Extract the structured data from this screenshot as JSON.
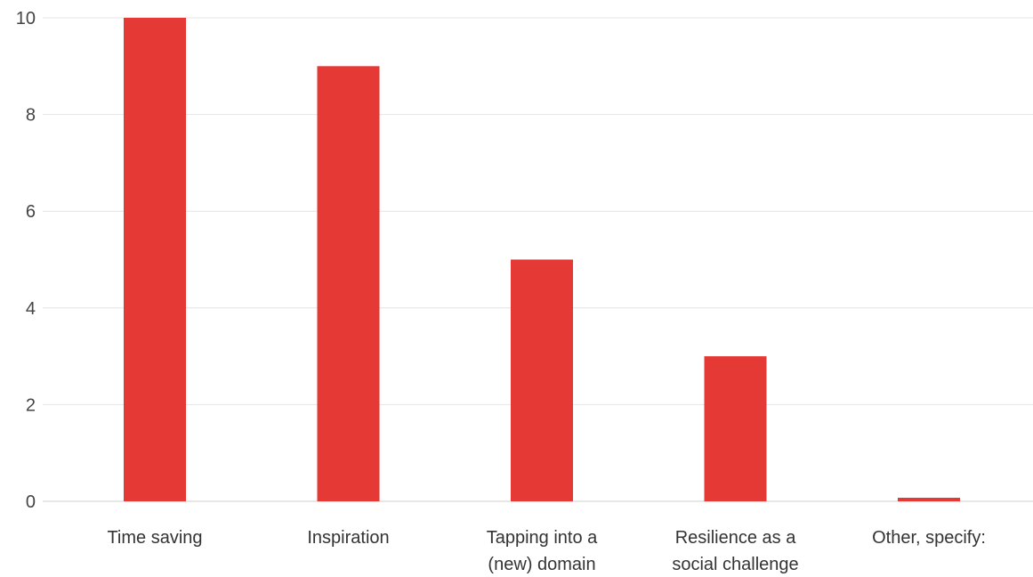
{
  "chart_data": {
    "type": "bar",
    "categories": [
      [
        "Time saving"
      ],
      [
        "Inspiration"
      ],
      [
        "Tapping into a",
        "(new) domain"
      ],
      [
        "Resilience as a",
        "social challenge"
      ],
      [
        "Other, specify:"
      ]
    ],
    "values": [
      10,
      9,
      5,
      3,
      0
    ],
    "ylim": [
      0,
      10
    ],
    "yticks": [
      0,
      2,
      4,
      6,
      8,
      10
    ],
    "grid": true,
    "legend": "none",
    "colors": {
      "bar": "#e53935",
      "grid": "#e4e4e4",
      "axis": "#cfcfcf"
    }
  }
}
